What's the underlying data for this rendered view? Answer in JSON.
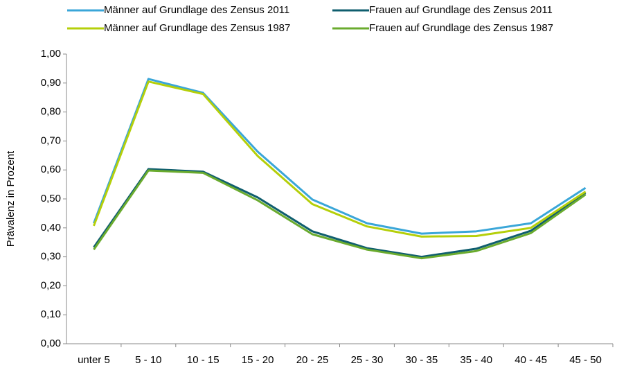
{
  "chart_data": {
    "type": "line",
    "y_label": "Prävalenz in Prozent",
    "categories": [
      "unter 5",
      "5 - 10",
      "10 - 15",
      "15 - 20",
      "20 - 25",
      "25 - 30",
      "30 - 35",
      "35 - 40",
      "40 - 45",
      "45 - 50"
    ],
    "series": [
      {
        "name": "Männer auf Grundlage des Zensus 2011",
        "color": "#3aa6d8",
        "values": [
          0.416,
          0.914,
          0.866,
          0.663,
          0.498,
          0.416,
          0.38,
          0.388,
          0.416,
          0.538
        ]
      },
      {
        "name": "Frauen auf Grundlage des Zensus 2011",
        "color": "#0f5e6e",
        "values": [
          0.333,
          0.603,
          0.594,
          0.505,
          0.388,
          0.33,
          0.3,
          0.328,
          0.39,
          0.52
        ]
      },
      {
        "name": "Männer auf Grundlage des Zensus 1987",
        "color": "#b5cf0a",
        "values": [
          0.407,
          0.905,
          0.862,
          0.648,
          0.482,
          0.405,
          0.37,
          0.372,
          0.4,
          0.525
        ]
      },
      {
        "name": "Frauen auf Grundlage des Zensus 1987",
        "color": "#6aab2e",
        "values": [
          0.325,
          0.598,
          0.59,
          0.495,
          0.378,
          0.325,
          0.295,
          0.32,
          0.382,
          0.515
        ]
      }
    ],
    "ylim": [
      0,
      1
    ],
    "yticks": [
      {
        "value": 0,
        "label": "0,00"
      },
      {
        "value": 0.1,
        "label": "0,10"
      },
      {
        "value": 0.2,
        "label": "0,20"
      },
      {
        "value": 0.3,
        "label": "0,30"
      },
      {
        "value": 0.4,
        "label": "0,40"
      },
      {
        "value": 0.5,
        "label": "0,50"
      },
      {
        "value": 0.6,
        "label": "0,60"
      },
      {
        "value": 0.7,
        "label": "0,70"
      },
      {
        "value": 0.8,
        "label": "0,80"
      },
      {
        "value": 0.9,
        "label": "0,90"
      },
      {
        "value": 1,
        "label": "1,00"
      }
    ],
    "grid": false,
    "legend": "top"
  }
}
